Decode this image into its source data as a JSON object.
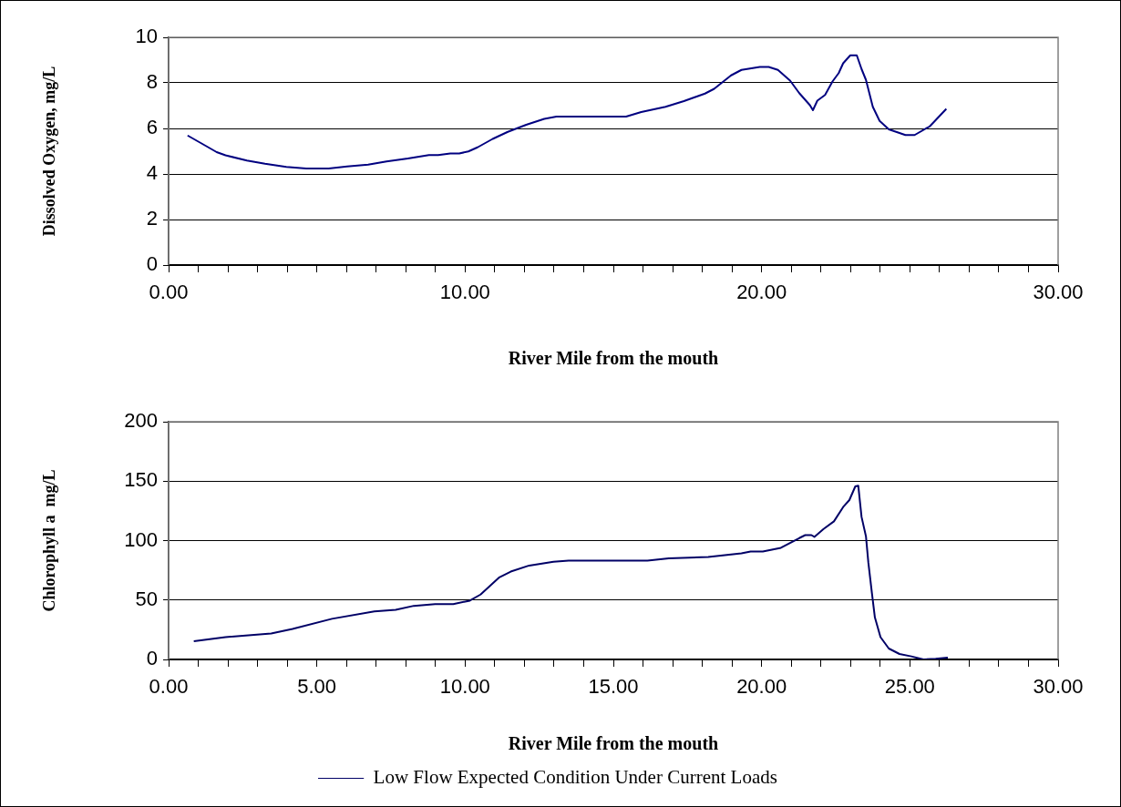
{
  "chart_data": [
    {
      "type": "line",
      "xlabel": "River Mile from the mouth",
      "ylabel": "Dissolved Oxygen, mg/L",
      "xlim": [
        0,
        30
      ],
      "ylim": [
        0,
        10
      ],
      "grid": "y",
      "legend": false,
      "marker": "none",
      "xticks": [
        {
          "value": 0,
          "label": "0.00"
        },
        {
          "value": 1,
          "label": null
        },
        {
          "value": 2,
          "label": null
        },
        {
          "value": 3,
          "label": null
        },
        {
          "value": 4,
          "label": null
        },
        {
          "value": 5,
          "label": null
        },
        {
          "value": 6,
          "label": null
        },
        {
          "value": 7,
          "label": null
        },
        {
          "value": 8,
          "label": null
        },
        {
          "value": 9,
          "label": null
        },
        {
          "value": 10,
          "label": "10.00"
        },
        {
          "value": 11,
          "label": null
        },
        {
          "value": 12,
          "label": null
        },
        {
          "value": 13,
          "label": null
        },
        {
          "value": 14,
          "label": null
        },
        {
          "value": 15,
          "label": null
        },
        {
          "value": 16,
          "label": null
        },
        {
          "value": 17,
          "label": null
        },
        {
          "value": 18,
          "label": null
        },
        {
          "value": 19,
          "label": null
        },
        {
          "value": 20,
          "label": "20.00"
        },
        {
          "value": 21,
          "label": null
        },
        {
          "value": 22,
          "label": null
        },
        {
          "value": 23,
          "label": null
        },
        {
          "value": 24,
          "label": null
        },
        {
          "value": 25,
          "label": null
        },
        {
          "value": 26,
          "label": null
        },
        {
          "value": 27,
          "label": null
        },
        {
          "value": 28,
          "label": null
        },
        {
          "value": 29,
          "label": null
        },
        {
          "value": 30,
          "label": "30.00"
        }
      ],
      "yticks": [
        0,
        2,
        4,
        6,
        8,
        10
      ],
      "series": [
        {
          "color": "#000080",
          "x": [
            0.64,
            1.26,
            1.62,
            1.92,
            2.64,
            3.25,
            3.97,
            4.64,
            5.4,
            6.02,
            6.73,
            7.35,
            8.07,
            8.78,
            9.09,
            9.5,
            9.8,
            10.11,
            10.42,
            10.93,
            11.44,
            12.06,
            12.67,
            13.08,
            15.43,
            15.94,
            16.76,
            17.38,
            18.09,
            18.4,
            18.97,
            19.32,
            19.94,
            20.24,
            20.55,
            20.96,
            21.27,
            21.63,
            21.73,
            21.88,
            22.14,
            22.39,
            22.6,
            22.75,
            22.99,
            23.21,
            23.37,
            23.52,
            23.75,
            23.98,
            24.29,
            24.85,
            25.16,
            25.67,
            26.23
          ],
          "values": [
            5.69,
            5.23,
            4.96,
            4.82,
            4.59,
            4.45,
            4.31,
            4.24,
            4.24,
            4.33,
            4.41,
            4.55,
            4.68,
            4.83,
            4.83,
            4.9,
            4.9,
            4.99,
            5.17,
            5.54,
            5.85,
            6.16,
            6.42,
            6.52,
            6.52,
            6.72,
            6.95,
            7.2,
            7.53,
            7.74,
            8.33,
            8.57,
            8.7,
            8.7,
            8.57,
            8.1,
            7.55,
            7.02,
            6.8,
            7.22,
            7.47,
            8.06,
            8.43,
            8.86,
            9.21,
            9.21,
            8.61,
            8.13,
            6.95,
            6.33,
            5.96,
            5.71,
            5.71,
            6.09,
            6.86
          ]
        }
      ]
    },
    {
      "type": "line",
      "xlabel": "River Mile from the mouth",
      "ylabel": "Chlorophyll a  mg/L",
      "xlim": [
        0,
        30
      ],
      "ylim": [
        0,
        200
      ],
      "grid": "y",
      "legend": "bottom",
      "marker": "none",
      "xticks": [
        {
          "value": 0,
          "label": "0.00"
        },
        {
          "value": 1,
          "label": null
        },
        {
          "value": 2,
          "label": null
        },
        {
          "value": 3,
          "label": null
        },
        {
          "value": 4,
          "label": null
        },
        {
          "value": 5,
          "label": "5.00"
        },
        {
          "value": 6,
          "label": null
        },
        {
          "value": 7,
          "label": null
        },
        {
          "value": 8,
          "label": null
        },
        {
          "value": 9,
          "label": null
        },
        {
          "value": 10,
          "label": "10.00"
        },
        {
          "value": 11,
          "label": null
        },
        {
          "value": 12,
          "label": null
        },
        {
          "value": 13,
          "label": null
        },
        {
          "value": 14,
          "label": null
        },
        {
          "value": 15,
          "label": "15.00"
        },
        {
          "value": 16,
          "label": null
        },
        {
          "value": 17,
          "label": null
        },
        {
          "value": 18,
          "label": null
        },
        {
          "value": 19,
          "label": null
        },
        {
          "value": 20,
          "label": "20.00"
        },
        {
          "value": 21,
          "label": null
        },
        {
          "value": 22,
          "label": null
        },
        {
          "value": 23,
          "label": null
        },
        {
          "value": 24,
          "label": null
        },
        {
          "value": 25,
          "label": "25.00"
        },
        {
          "value": 26,
          "label": null
        },
        {
          "value": 27,
          "label": null
        },
        {
          "value": 28,
          "label": null
        },
        {
          "value": 29,
          "label": null
        },
        {
          "value": 30,
          "label": "30.00"
        }
      ],
      "yticks": [
        0,
        50,
        100,
        150,
        200
      ],
      "series": [
        {
          "name": "Low Flow Expected Condition Under Current Loads",
          "color": "#000066",
          "x": [
            0.85,
            1.92,
            3.46,
            4.18,
            5.51,
            6.94,
            7.66,
            8.27,
            8.99,
            9.6,
            10.16,
            10.52,
            11.14,
            11.54,
            12.16,
            12.98,
            13.49,
            16.15,
            16.87,
            18.2,
            19.32,
            19.63,
            20.04,
            20.65,
            21.27,
            21.47,
            21.68,
            21.78,
            22.09,
            22.44,
            22.75,
            22.96,
            23.16,
            23.26,
            23.37,
            23.52,
            23.6,
            23.72,
            23.82,
            24.01,
            24.29,
            24.65,
            25.05,
            25.46,
            25.87,
            26.28
          ],
          "values": [
            15.4,
            18.8,
            21.8,
            25.7,
            34.2,
            40.5,
            41.8,
            45.1,
            46.5,
            46.5,
            49.5,
            54.6,
            68.8,
            73.9,
            79,
            82.1,
            83.1,
            83.1,
            85,
            86.2,
            89.3,
            90.8,
            90.8,
            93.9,
            102.1,
            104.6,
            104.6,
            103.1,
            109.8,
            116.2,
            128.2,
            134.1,
            145.6,
            146.2,
            120,
            103.4,
            81.5,
            55.9,
            35.4,
            18.8,
            9.2,
            4.6,
            2.6,
            0,
            0.5,
            1.5
          ]
        }
      ]
    }
  ]
}
